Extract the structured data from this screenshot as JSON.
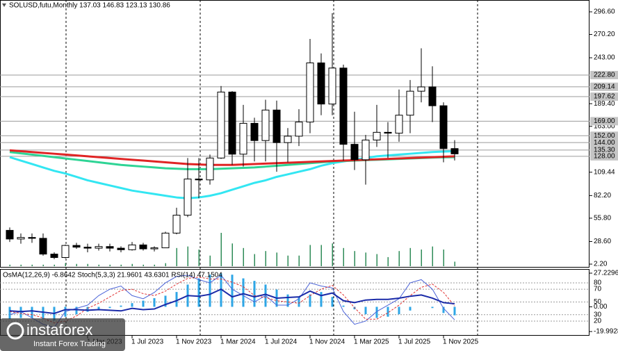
{
  "chart_data": [
    {
      "type": "candlestick",
      "title": "SOLUSD,futu,Monthly 137.03 146.83 123.13 130.86",
      "categories": [
        null,
        null,
        null,
        null,
        null,
        null,
        null,
        "1 Mar 2023",
        null,
        null,
        null,
        "1 Jul 2023",
        null,
        null,
        null,
        "1 Nov 2023",
        null,
        null,
        null,
        "1 Mar 2024",
        null,
        null,
        null,
        "1 Jul 2024",
        null,
        null,
        null,
        "1 Nov 2024",
        null,
        null,
        null,
        "1 Mar 2025",
        null,
        null,
        null,
        "1 Jul 2025",
        null,
        null,
        null,
        "1 Nov 2025",
        null
      ],
      "open": [
        41.6,
        31.5,
        33.3,
        32.3,
        13.9,
        9.9,
        24,
        22,
        20.8,
        22.7,
        20.8,
        19,
        24.6,
        20,
        21.2,
        38.4,
        59.3,
        101.5,
        100.5,
        126,
        203,
        130.5,
        166.5,
        146.4,
        182,
        144,
        151.5,
        168,
        237,
        189,
        231,
        142,
        124,
        147,
        156,
        155,
        176,
        204,
        209,
        187,
        137.03
      ],
      "high": [
        45,
        38,
        38,
        38,
        16,
        25,
        27,
        26,
        26,
        26,
        23,
        28,
        27,
        23,
        40,
        68,
        126,
        126,
        130,
        210,
        204,
        188,
        173,
        194,
        193,
        161,
        183,
        265,
        248,
        295,
        235,
        180,
        153,
        188,
        168,
        206,
        217,
        254,
        233,
        191,
        146.83
      ],
      "low": [
        28,
        26,
        27,
        12,
        8,
        9,
        20,
        16,
        18,
        17,
        16,
        18,
        18,
        17,
        21,
        37,
        57,
        79,
        95,
        125,
        118,
        116,
        122,
        122,
        110,
        121,
        140,
        155,
        176,
        176,
        123,
        112,
        95,
        139,
        126,
        145,
        155,
        191,
        168,
        121,
        123.13
      ],
      "close": [
        31.5,
        33.3,
        32.3,
        13.9,
        9.9,
        24,
        22,
        20.8,
        22.7,
        20.8,
        19,
        24.6,
        20,
        21.2,
        38.4,
        59.3,
        101.5,
        100.5,
        126,
        203,
        130.5,
        166.5,
        146.4,
        182,
        144,
        151.5,
        168,
        237,
        189,
        231,
        142,
        124,
        147,
        156,
        155,
        176,
        204,
        209,
        187,
        137.03,
        130.86
      ],
      "volume": [
        2,
        2,
        2,
        2,
        2,
        4,
        3,
        3,
        2,
        2,
        2,
        3,
        2,
        2,
        4,
        24,
        26,
        22,
        14,
        44,
        30,
        24,
        16,
        20,
        18,
        14,
        14,
        28,
        28,
        30,
        24,
        20,
        18,
        16,
        12,
        20,
        24,
        22,
        26,
        22,
        6
      ],
      "volume_color": "#2e8b57",
      "up_color": "#ffffff",
      "down_color": "#000000",
      "moving_averages": [
        {
          "color": "#33e6f2",
          "values": [
            127,
            123,
            119,
            115,
            111,
            108,
            104,
            100,
            97,
            94,
            91,
            88,
            86,
            84,
            82,
            80,
            79,
            80,
            82,
            85,
            89,
            93,
            97,
            100,
            104,
            107,
            110,
            113,
            117,
            120,
            122,
            124,
            126,
            128,
            129,
            130,
            131,
            132,
            133,
            133.5,
            134
          ]
        },
        {
          "color": "#2ed495",
          "values": [
            133,
            131.5,
            130,
            128.5,
            127,
            125.5,
            124,
            122.5,
            121,
            119.5,
            118,
            117,
            116,
            115,
            114,
            113.5,
            113,
            113,
            113,
            113.5,
            114,
            114.5,
            115,
            116,
            117,
            118,
            119,
            120,
            121,
            122,
            122.5,
            123,
            123.5,
            124,
            124.5,
            125,
            125.5,
            126,
            126.5,
            126.8,
            127
          ]
        },
        {
          "color": "#e02424",
          "values": [
            135,
            134,
            133,
            132,
            131,
            130,
            129,
            128,
            127,
            126,
            125,
            124,
            123,
            122,
            121,
            120,
            119,
            118.5,
            118,
            118,
            118,
            118.5,
            119,
            119.5,
            120,
            120.5,
            121,
            121.5,
            122,
            122.5,
            123,
            123.5,
            124,
            124.5,
            125,
            125.5,
            126,
            126.5,
            127,
            127.5,
            128
          ]
        }
      ],
      "levels": [
        {
          "value": 222.8,
          "label": "222.80"
        },
        {
          "value": 209.14,
          "label": "209.14"
        },
        {
          "value": 197.62,
          "label": "197.62"
        },
        {
          "value": 169,
          "label": "169.00"
        },
        {
          "value": 152,
          "label": "152.00"
        },
        {
          "value": 144,
          "label": "144.00"
        },
        {
          "value": 135.3,
          "label": "135.30"
        },
        {
          "value": 128,
          "label": "128.00"
        }
      ],
      "level_color": "#9a9a9a",
      "ylim": [
        -1.86,
        310.4
      ],
      "yticks": [
        {
          "value": 296.6,
          "label": "296.60"
        },
        {
          "value": 270.2,
          "label": "270.20"
        },
        {
          "value": 243,
          "label": "243.00"
        },
        {
          "value": 189.4,
          "label": "189.40"
        },
        {
          "value": 163,
          "label": "163.00"
        },
        {
          "value": 109.44,
          "label": "109.44"
        },
        {
          "value": 82.2,
          "label": "82.20"
        },
        {
          "value": 55.8,
          "label": "55.80"
        },
        {
          "value": 28.6,
          "label": "28.60"
        },
        {
          "value": 2.2,
          "label": "2.20"
        }
      ]
    },
    {
      "type": "oscillator",
      "title": "OsMA(12,26,9) -6.8642  Stoch(5,3,3) 21.9601 43.6301  RSI(14) 47.1504",
      "series": [
        {
          "style": "histogram",
          "color": "#2ea6e6",
          "values": [
            -10,
            -9,
            -9,
            -10,
            -11,
            -8,
            -6,
            -4,
            -2,
            -1,
            1,
            3,
            5,
            7,
            9,
            12,
            18,
            23,
            26,
            27,
            26,
            23,
            21,
            18,
            14,
            10,
            8,
            10,
            12,
            8,
            1,
            -2,
            -6,
            -9,
            -8,
            -6,
            -3,
            0,
            -1,
            -5,
            -6.8642
          ]
        },
        {
          "style": "line",
          "axis": "y2",
          "color": "#4a63d8",
          "values": [
            30,
            35,
            25,
            15,
            10,
            35,
            40,
            45,
            60,
            70,
            75,
            60,
            55,
            65,
            80,
            90,
            92,
            85,
            80,
            92,
            70,
            60,
            50,
            60,
            45,
            45,
            55,
            80,
            75,
            72,
            35,
            15,
            20,
            35,
            45,
            55,
            80,
            85,
            70,
            40,
            21.9601
          ]
        },
        {
          "style": "dashed",
          "axis": "y2",
          "color": "#e03030",
          "values": [
            35,
            32,
            30,
            25,
            17,
            20,
            28,
            40,
            48,
            58,
            68,
            70,
            63,
            60,
            67,
            78,
            87,
            89,
            86,
            86,
            81,
            74,
            60,
            57,
            52,
            50,
            48,
            60,
            70,
            76,
            61,
            41,
            23,
            23,
            33,
            45,
            60,
            73,
            78,
            65,
            43.6301
          ]
        },
        {
          "style": "thick",
          "axis": "y2",
          "color": "#1a2aa8",
          "values": [
            36,
            35,
            36,
            34,
            32,
            38,
            38,
            37,
            38,
            37,
            36,
            40,
            38,
            39,
            46,
            52,
            60,
            59,
            62,
            70,
            58,
            63,
            58,
            62,
            56,
            57,
            58,
            67,
            60,
            64,
            52,
            49,
            53,
            54,
            54,
            56,
            59,
            61,
            56,
            49,
            47.1504
          ]
        }
      ],
      "ylim": [
        -19.99286,
        27.2296
      ],
      "yticks": [
        27.2296,
        {
          "value": 0,
          "label": "0.00"
        },
        -19.99286
      ],
      "y2lim": [
        3.6,
        95.2
      ],
      "y2ticks": [
        80,
        70,
        50,
        30,
        20
      ]
    }
  ],
  "watermark": {
    "brand": "instaforex",
    "tagline": "Instant Forex Trading"
  }
}
